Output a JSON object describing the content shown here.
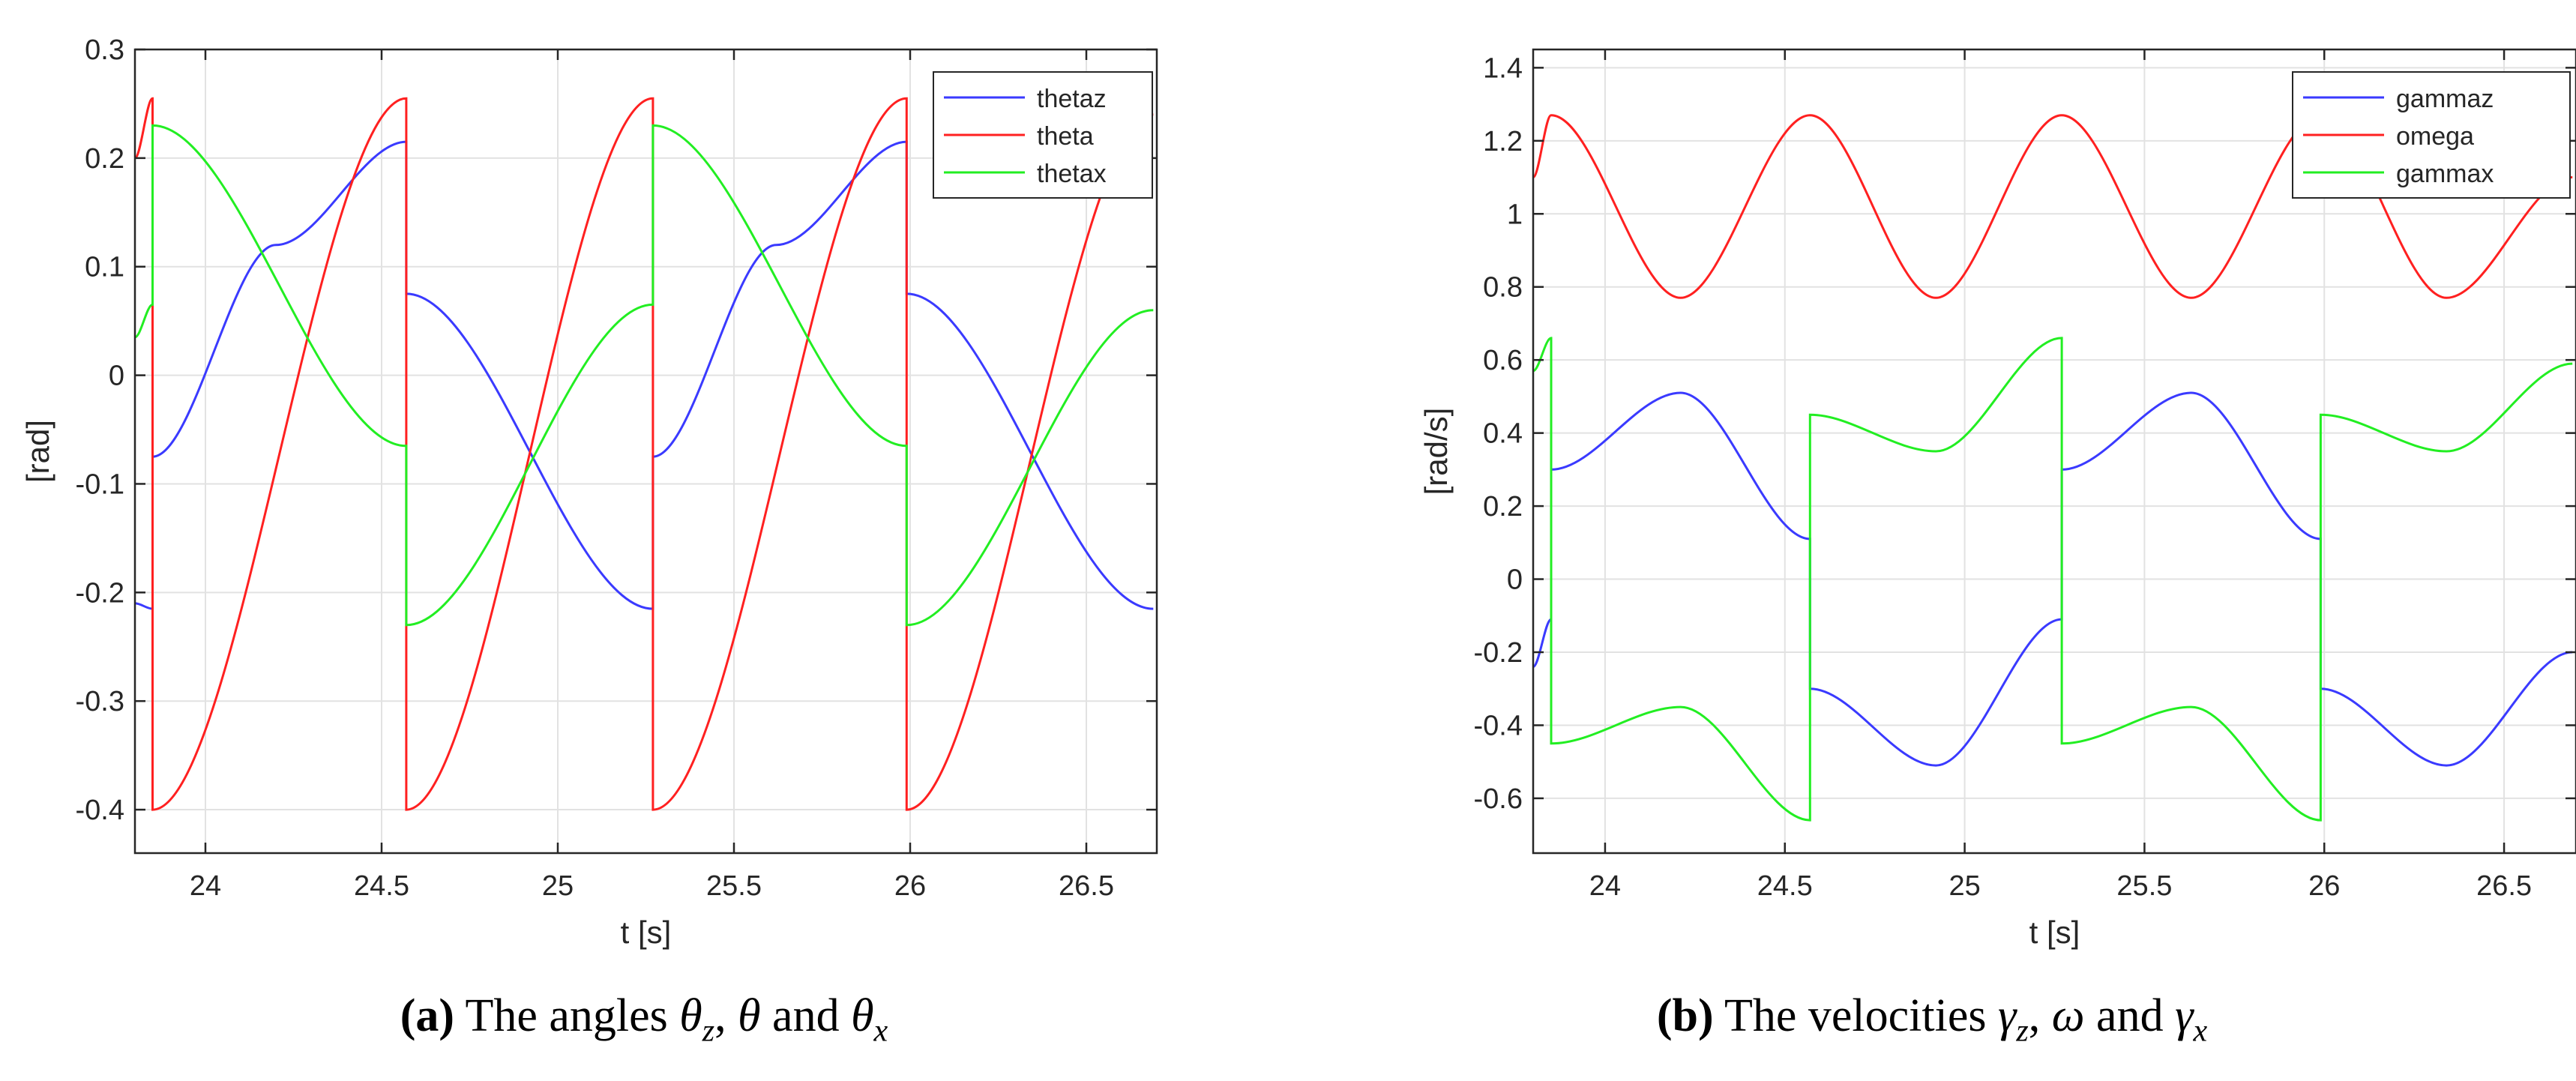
{
  "charts": [
    {
      "chart_data": {
        "type": "line",
        "title": "",
        "xlabel": "t [s]",
        "ylabel": "[rad]",
        "xlim": [
          23.8,
          26.7
        ],
        "ylim": [
          -0.44,
          0.3
        ],
        "xticks": [
          24,
          24.5,
          25,
          25.5,
          26,
          26.5
        ],
        "xtick_labels": [
          "24",
          "24.5",
          "25",
          "25.5",
          "26",
          "26.5"
        ],
        "yticks": [
          -0.4,
          -0.3,
          -0.2,
          -0.1,
          0,
          0.1,
          0.2,
          0.3
        ],
        "ytick_labels": [
          "-0.4",
          "-0.3",
          "-0.2",
          "-0.1",
          "0",
          "0.1",
          "0.2",
          "0.3"
        ],
        "grid": true,
        "legend_position": "top-right",
        "period": 1.42,
        "series": [
          {
            "name": "thetaz",
            "color": "#3a3aff",
            "x": [
              23.8,
              23.85,
              23.85,
              24.2,
              24.57,
              24.57,
              25.27,
              25.27,
              25.62,
              25.99,
              25.99,
              26.69
            ],
            "y": [
              -0.21,
              -0.215,
              -0.075,
              0.12,
              0.215,
              0.075,
              -0.215,
              -0.075,
              0.12,
              0.215,
              0.075,
              -0.215
            ]
          },
          {
            "name": "theta",
            "color": "#ff2020",
            "x": [
              23.8,
              23.85,
              23.85,
              24.57,
              24.57,
              25.27,
              25.27,
              25.99,
              25.99,
              26.69
            ],
            "y": [
              0.2,
              0.255,
              -0.4,
              0.255,
              -0.4,
              0.255,
              -0.4,
              0.255,
              -0.4,
              0.24
            ]
          },
          {
            "name": "thetax",
            "color": "#22ee22",
            "x": [
              23.8,
              23.85,
              23.85,
              24.57,
              24.57,
              25.27,
              25.27,
              25.99,
              25.99,
              26.69
            ],
            "y": [
              0.035,
              0.065,
              0.23,
              -0.065,
              -0.23,
              0.065,
              0.23,
              -0.065,
              -0.23,
              0.06
            ]
          }
        ]
      },
      "caption": {
        "label": "(a)",
        "pre": "The angles",
        "sym1": "θ",
        "sub1": "z",
        "sep1": ",",
        "sym2": "θ",
        "sep2": "and",
        "sym3": "θ",
        "sub3": "x"
      }
    },
    {
      "chart_data": {
        "type": "line",
        "title": "",
        "xlabel": "t [s]",
        "ylabel": "[rad/s]",
        "xlim": [
          23.8,
          26.7
        ],
        "ylim": [
          -0.75,
          1.45
        ],
        "xticks": [
          24,
          24.5,
          25,
          25.5,
          26,
          26.5
        ],
        "xtick_labels": [
          "24",
          "24.5",
          "25",
          "25.5",
          "26",
          "26.5"
        ],
        "yticks": [
          -0.6,
          -0.4,
          -0.2,
          0,
          0.2,
          0.4,
          0.6,
          0.8,
          1,
          1.2,
          1.4
        ],
        "ytick_labels": [
          "-0.6",
          "-0.4",
          "-0.2",
          "0",
          "0.2",
          "0.4",
          "0.6",
          "0.8",
          "1",
          "1.2",
          "1.4"
        ],
        "grid": true,
        "legend_position": "top-right",
        "period": 1.42,
        "series": [
          {
            "name": "gammaz",
            "color": "#3a3aff",
            "x": [
              23.8,
              23.85,
              23.85,
              24.21,
              24.57,
              24.57,
              24.92,
              25.27,
              25.27,
              25.63,
              25.99,
              25.99,
              26.34,
              26.69
            ],
            "y": [
              -0.24,
              -0.11,
              0.3,
              0.51,
              0.11,
              -0.3,
              -0.51,
              -0.11,
              0.3,
              0.51,
              0.11,
              -0.3,
              -0.51,
              -0.2
            ]
          },
          {
            "name": "omega",
            "color": "#ff2020",
            "x": [
              23.8,
              23.85,
              24.21,
              24.57,
              24.92,
              25.27,
              25.63,
              25.99,
              26.34,
              26.69
            ],
            "y": [
              1.1,
              1.27,
              0.77,
              1.27,
              0.77,
              1.27,
              0.77,
              1.27,
              0.77,
              1.1
            ]
          },
          {
            "name": "gammax",
            "color": "#22ee22",
            "x": [
              23.8,
              23.85,
              23.85,
              24.21,
              24.57,
              24.57,
              24.92,
              25.27,
              25.27,
              25.63,
              25.99,
              25.99,
              26.34,
              26.69
            ],
            "y": [
              0.57,
              0.66,
              -0.45,
              -0.35,
              -0.66,
              0.45,
              0.35,
              0.66,
              -0.45,
              -0.35,
              -0.66,
              0.45,
              0.35,
              0.59
            ]
          }
        ]
      },
      "caption": {
        "label": "(b)",
        "pre": "The velocities",
        "sym1": "γ",
        "sub1": "z",
        "sep1": ",",
        "sym2": "ω",
        "sep2": "and",
        "sym3": "γ",
        "sub3": "x"
      }
    }
  ]
}
